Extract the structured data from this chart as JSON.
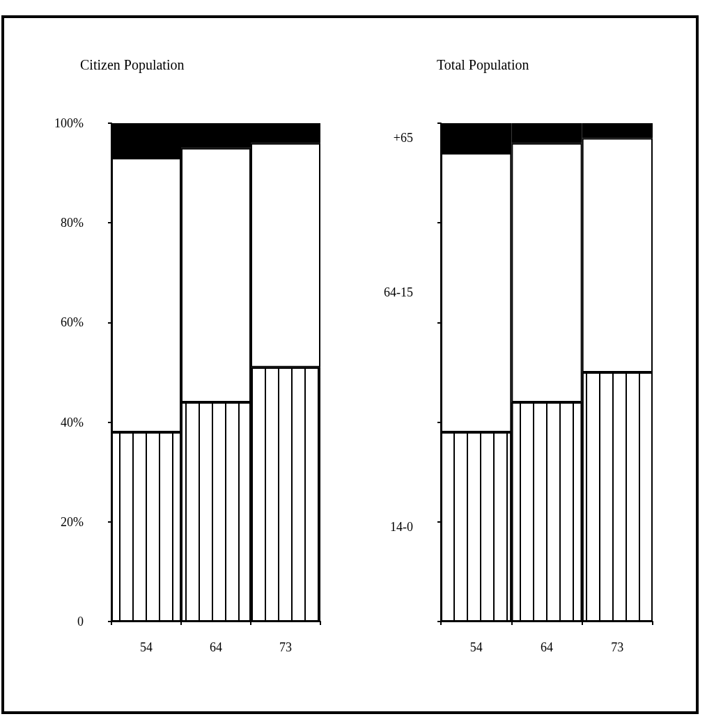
{
  "chart_data": [
    {
      "type": "bar",
      "title": "Citizen Population",
      "categories": [
        "54",
        "64",
        "73"
      ],
      "stacked": true,
      "series": [
        {
          "color": "#ffffff",
          "values": [
            38,
            44,
            51
          ]
        },
        {
          "color": "#ffffff",
          "values": [
            55,
            51,
            45
          ]
        },
        {
          "color": "#000000",
          "values": [
            7,
            5,
            4
          ]
        }
      ],
      "ylim": [
        0,
        100
      ],
      "yticks": [
        0,
        {
          "value": 20,
          "label": "20%"
        },
        {
          "value": 40,
          "label": "40%"
        },
        {
          "value": 60,
          "label": "60%"
        },
        {
          "value": 80,
          "label": "80%"
        },
        {
          "value": 100,
          "label": "100%"
        }
      ],
      "grid": false,
      "legend": false
    },
    {
      "type": "bar",
      "title": "Total Population",
      "categories": [
        "54",
        "64",
        "73"
      ],
      "stacked": true,
      "series": [
        {
          "name": "14-0",
          "color": "#ffffff",
          "values": [
            38,
            44,
            50
          ]
        },
        {
          "name": "64-15",
          "color": "#ffffff",
          "values": [
            56,
            52,
            47
          ]
        },
        {
          "name": "+65",
          "color": "#000000",
          "values": [
            6,
            4,
            3
          ]
        }
      ],
      "ylim": [
        0,
        100
      ],
      "yticks": [
        {
          "value": 0,
          "label": null
        },
        {
          "value": 20,
          "label": null
        },
        {
          "value": 40,
          "label": null
        },
        {
          "value": 60,
          "label": null
        },
        {
          "value": 80,
          "label": null
        },
        {
          "value": 100,
          "label": null
        }
      ],
      "tick_labels": "x",
      "grid": false,
      "legend": false
    }
  ]
}
